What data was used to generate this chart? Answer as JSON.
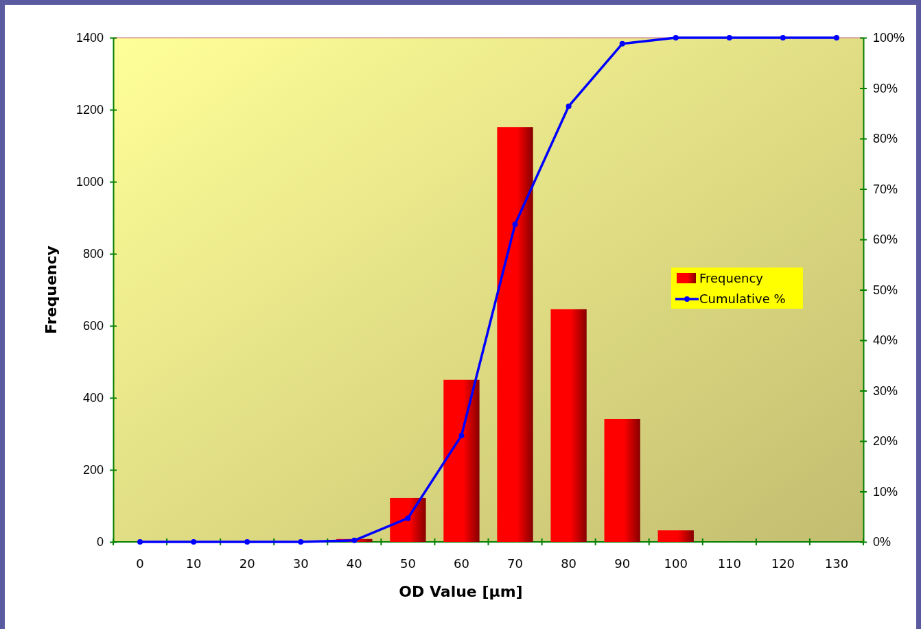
{
  "chart_data": {
    "type": "bar",
    "xlabel": "OD Value [µm]",
    "ylabel": "Frequency",
    "categories": [
      "0",
      "10",
      "20",
      "30",
      "40",
      "50",
      "60",
      "70",
      "80",
      "90",
      "100",
      "110",
      "120",
      "130"
    ],
    "series": [
      {
        "name": "Frequency",
        "color": "#ff0000",
        "values": [
          0,
          0,
          0,
          0,
          8,
          122,
          450,
          1152,
          646,
          341,
          32,
          0,
          0,
          0
        ]
      },
      {
        "name": "Cumulative %",
        "type": "line",
        "axis": "y2",
        "color": "#0000ff",
        "marker": "circle",
        "line_style": "solid",
        "values": [
          0,
          0,
          0,
          0,
          0.3,
          4.7,
          21.1,
          63,
          86.4,
          98.8,
          100,
          100,
          100,
          100
        ]
      }
    ],
    "ylim": [
      0,
      1400
    ],
    "yticks": [
      0,
      200,
      400,
      600,
      800,
      1000,
      1200,
      1400
    ],
    "y2lim": [
      0,
      100
    ],
    "y2ticks": [
      {
        "value": 0,
        "label": "0%"
      },
      {
        "value": 10,
        "label": "10%"
      },
      {
        "value": 20,
        "label": "20%"
      },
      {
        "value": 30,
        "label": "30%"
      },
      {
        "value": 40,
        "label": "40%"
      },
      {
        "value": 50,
        "label": "50%"
      },
      {
        "value": 60,
        "label": "60%"
      },
      {
        "value": 70,
        "label": "70%"
      },
      {
        "value": 80,
        "label": "80%"
      },
      {
        "value": 90,
        "label": "90%"
      },
      {
        "value": 100,
        "label": "100%"
      }
    ],
    "legend": "right",
    "grid": false
  }
}
